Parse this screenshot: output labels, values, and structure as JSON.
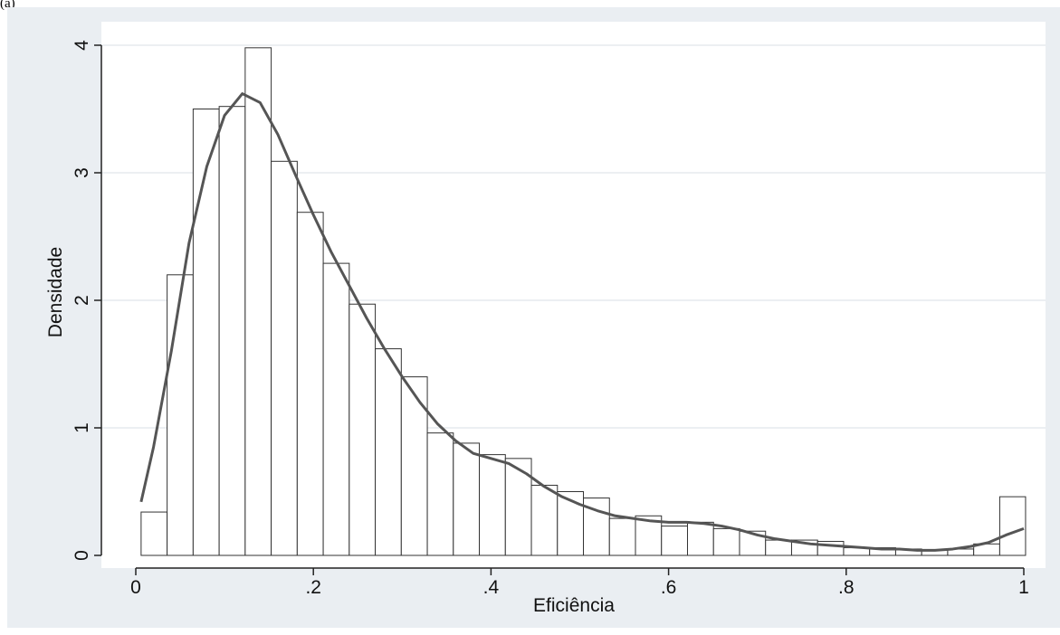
{
  "panel_label": "(a)",
  "chart_data": {
    "type": "bar",
    "subtype": "histogram-with-density",
    "title": "",
    "xlabel": "Eficiência",
    "ylabel": "Densidade",
    "xlim": [
      0,
      1
    ],
    "ylim": [
      0,
      4
    ],
    "x_ticks": [
      0,
      0.2,
      0.4,
      0.6,
      0.8,
      1
    ],
    "x_tick_labels": [
      "0",
      ".2",
      ".4",
      ".6",
      ".8",
      "1"
    ],
    "y_ticks": [
      0,
      1,
      2,
      3,
      4
    ],
    "y_tick_labels": [
      "0",
      "1",
      "2",
      "3",
      "4"
    ],
    "grid": "horizontal",
    "colors": {
      "background": "#eaeef2",
      "plot_area": "#ffffff",
      "bar_fill": "#ffffff",
      "bar_stroke": "#333333",
      "curve": "#555555",
      "grid": "#e6eaee"
    },
    "bins": [
      {
        "x0": 0.006,
        "x1": 0.0353,
        "value": 0.34
      },
      {
        "x0": 0.0353,
        "x1": 0.0646,
        "value": 2.2
      },
      {
        "x0": 0.0646,
        "x1": 0.0939,
        "value": 3.5
      },
      {
        "x0": 0.0939,
        "x1": 0.1232,
        "value": 3.52
      },
      {
        "x0": 0.1232,
        "x1": 0.1525,
        "value": 3.98
      },
      {
        "x0": 0.1525,
        "x1": 0.1818,
        "value": 3.09
      },
      {
        "x0": 0.1818,
        "x1": 0.2111,
        "value": 2.69
      },
      {
        "x0": 0.2111,
        "x1": 0.2404,
        "value": 2.29
      },
      {
        "x0": 0.2404,
        "x1": 0.2697,
        "value": 1.97
      },
      {
        "x0": 0.2697,
        "x1": 0.299,
        "value": 1.62
      },
      {
        "x0": 0.299,
        "x1": 0.3283,
        "value": 1.4
      },
      {
        "x0": 0.3283,
        "x1": 0.3576,
        "value": 0.96
      },
      {
        "x0": 0.3576,
        "x1": 0.3869,
        "value": 0.88
      },
      {
        "x0": 0.3869,
        "x1": 0.4162,
        "value": 0.79
      },
      {
        "x0": 0.4162,
        "x1": 0.4455,
        "value": 0.76
      },
      {
        "x0": 0.4455,
        "x1": 0.4748,
        "value": 0.55
      },
      {
        "x0": 0.4748,
        "x1": 0.5041,
        "value": 0.5
      },
      {
        "x0": 0.5041,
        "x1": 0.5334,
        "value": 0.45
      },
      {
        "x0": 0.5334,
        "x1": 0.5627,
        "value": 0.29
      },
      {
        "x0": 0.5627,
        "x1": 0.592,
        "value": 0.31
      },
      {
        "x0": 0.592,
        "x1": 0.6213,
        "value": 0.23
      },
      {
        "x0": 0.6213,
        "x1": 0.6506,
        "value": 0.26
      },
      {
        "x0": 0.6506,
        "x1": 0.6799,
        "value": 0.21
      },
      {
        "x0": 0.6799,
        "x1": 0.7092,
        "value": 0.19
      },
      {
        "x0": 0.7092,
        "x1": 0.7385,
        "value": 0.12
      },
      {
        "x0": 0.7385,
        "x1": 0.7678,
        "value": 0.12
      },
      {
        "x0": 0.7678,
        "x1": 0.7971,
        "value": 0.11
      },
      {
        "x0": 0.7971,
        "x1": 0.8264,
        "value": 0.06
      },
      {
        "x0": 0.8264,
        "x1": 0.8557,
        "value": 0.06
      },
      {
        "x0": 0.8557,
        "x1": 0.885,
        "value": 0.05
      },
      {
        "x0": 0.885,
        "x1": 0.9143,
        "value": 0.04
      },
      {
        "x0": 0.9143,
        "x1": 0.9436,
        "value": 0.05
      },
      {
        "x0": 0.9436,
        "x1": 0.9729,
        "value": 0.09
      },
      {
        "x0": 0.9729,
        "x1": 1.002,
        "value": 0.46
      }
    ],
    "density_curve": {
      "x": [
        0.006,
        0.02,
        0.04,
        0.06,
        0.08,
        0.1,
        0.12,
        0.14,
        0.16,
        0.18,
        0.2,
        0.22,
        0.24,
        0.26,
        0.28,
        0.3,
        0.32,
        0.34,
        0.36,
        0.38,
        0.4,
        0.42,
        0.44,
        0.46,
        0.48,
        0.5,
        0.52,
        0.54,
        0.56,
        0.58,
        0.6,
        0.62,
        0.64,
        0.66,
        0.68,
        0.7,
        0.72,
        0.74,
        0.76,
        0.78,
        0.8,
        0.82,
        0.84,
        0.86,
        0.88,
        0.9,
        0.92,
        0.94,
        0.96,
        0.98,
        1.0
      ],
      "y": [
        0.42,
        0.85,
        1.6,
        2.45,
        3.05,
        3.45,
        3.62,
        3.55,
        3.3,
        2.98,
        2.67,
        2.38,
        2.12,
        1.86,
        1.62,
        1.4,
        1.2,
        1.03,
        0.9,
        0.8,
        0.76,
        0.72,
        0.64,
        0.54,
        0.46,
        0.4,
        0.35,
        0.31,
        0.29,
        0.27,
        0.26,
        0.26,
        0.25,
        0.23,
        0.2,
        0.16,
        0.13,
        0.11,
        0.09,
        0.08,
        0.07,
        0.06,
        0.05,
        0.05,
        0.04,
        0.04,
        0.05,
        0.07,
        0.1,
        0.16,
        0.21
      ]
    }
  }
}
